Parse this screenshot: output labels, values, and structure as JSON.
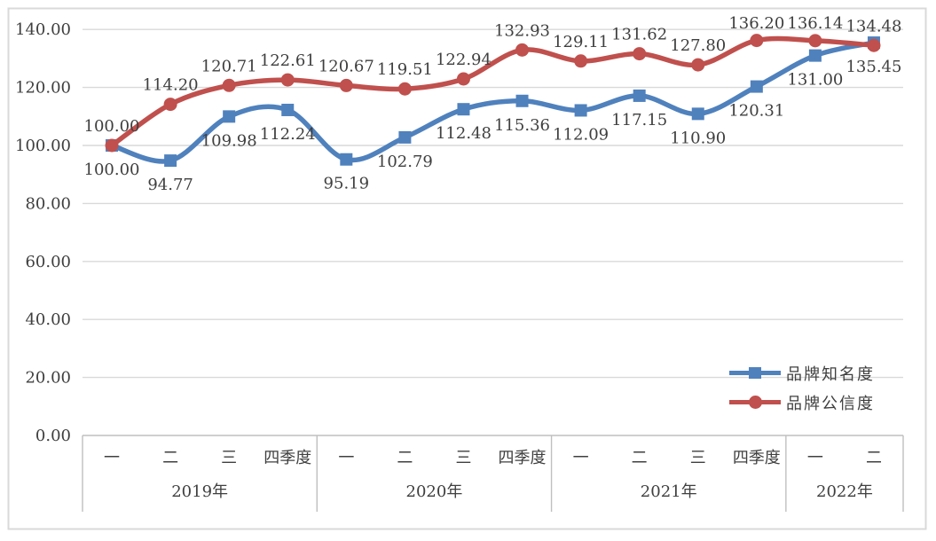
{
  "chart_data": {
    "type": "line",
    "title": "",
    "grid": true,
    "smooth_lines": true,
    "y_axis": {
      "min": 0,
      "max": 140,
      "step": 20,
      "tick_labels": [
        "0.00",
        "20.00",
        "40.00",
        "60.00",
        "80.00",
        "100.00",
        "120.00",
        "140.00"
      ]
    },
    "x_axis": {
      "groups": [
        {
          "year": "2019年",
          "quarters": [
            "一",
            "二",
            "三",
            "四季度"
          ]
        },
        {
          "year": "2020年",
          "quarters": [
            "一",
            "二",
            "三",
            "四季度"
          ]
        },
        {
          "year": "2021年",
          "quarters": [
            "一",
            "二",
            "三",
            "四季度"
          ]
        },
        {
          "year": "2022年",
          "quarters": [
            "一",
            "二"
          ]
        }
      ]
    },
    "series": [
      {
        "name": "品牌知名度",
        "color": "#4F81BD",
        "marker": "square",
        "label_position": "below",
        "values": [
          100.0,
          94.77,
          109.98,
          112.24,
          95.19,
          102.79,
          112.48,
          115.36,
          112.09,
          117.15,
          110.9,
          120.31,
          131.0,
          135.45
        ]
      },
      {
        "name": "品牌公信度",
        "color": "#C0504D",
        "marker": "circle",
        "label_position": "above",
        "values": [
          100.0,
          114.2,
          120.71,
          122.61,
          120.67,
          119.51,
          122.94,
          132.93,
          129.11,
          131.62,
          127.8,
          136.2,
          136.14,
          134.48
        ]
      }
    ],
    "legend": {
      "position": "bottom-right",
      "entries": [
        "品牌知名度",
        "品牌公信度"
      ]
    },
    "colors": {
      "gridline": "#D9D9D9",
      "axis_line": "#BFBFBF",
      "frame_border": "#D9D9D9",
      "text": "#3F3F3F"
    }
  }
}
